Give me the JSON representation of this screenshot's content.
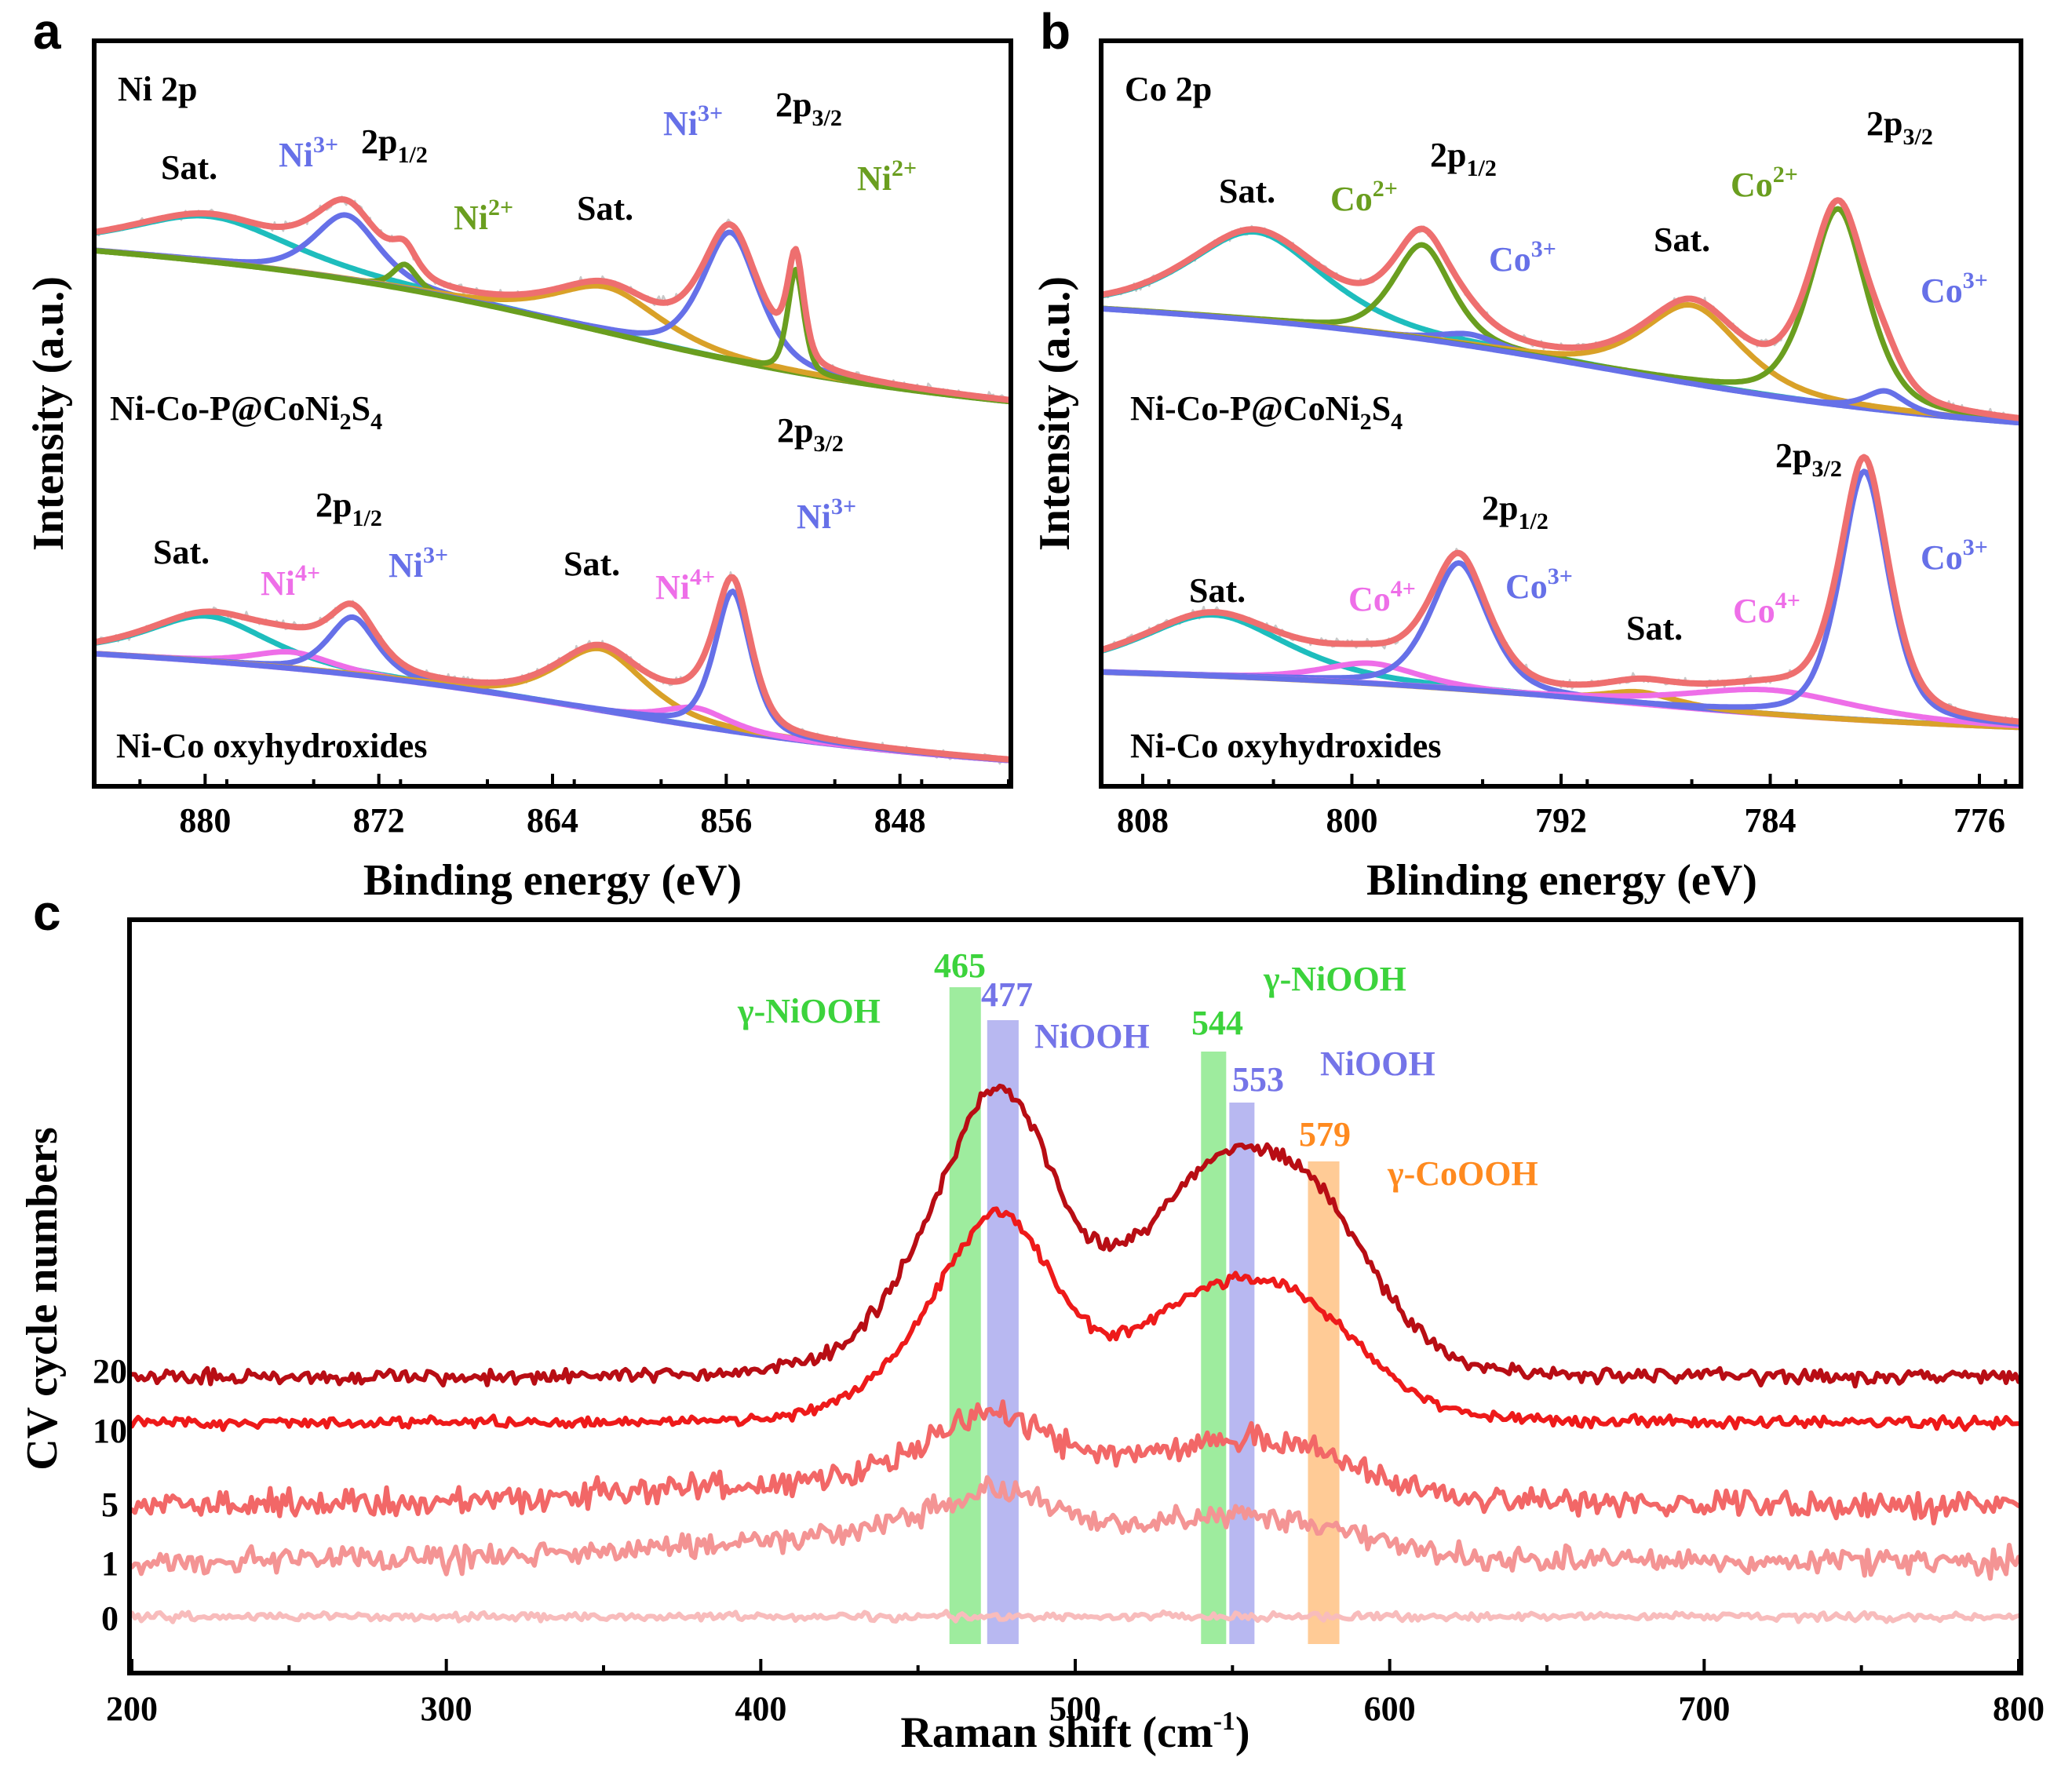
{
  "colors": {
    "raw": "#c8c8c8",
    "envelope": "#ee6f6f",
    "ni3": "#6670e8",
    "ni2": "#6a9e1f",
    "sat": "#d9a128",
    "cyan": "#1ebdbd",
    "pink": "#ee6ee8",
    "green_band": "#4fdc4f",
    "blue_band": "#7e7ee6",
    "orange_band": "#ffa040"
  },
  "chart_data": [
    {
      "panel": "a",
      "type": "line",
      "panel_letter": "a",
      "title": "Ni 2p",
      "xlabel": "Binding energy (eV)",
      "ylabel": "Intensity (a.u.)",
      "xlim": [
        885,
        843
      ],
      "x_ticks": [
        880,
        872,
        864,
        856,
        848
      ],
      "sample_labels": {
        "top": "Ni-Co-P@CoNi",
        "top_sub1": "2",
        "top_mid": "S",
        "top_sub2": "4",
        "bottom": "Ni-Co oxyhydroxides"
      },
      "top_peaks": [
        {
          "x": 879.8,
          "h": 0.55,
          "w": 4.0,
          "label": "Sat."
        },
        {
          "x": 873.5,
          "h": 0.78,
          "w": 1.6,
          "label": "Ni3+"
        },
        {
          "x": 870.8,
          "h": 0.3,
          "w": 0.6,
          "label": "Ni2+"
        },
        {
          "x": 861.5,
          "h": 0.55,
          "w": 2.6,
          "label": "Sat."
        },
        {
          "x": 855.8,
          "h": 1.55,
          "w": 1.4,
          "label": "Ni3+"
        },
        {
          "x": 852.8,
          "h": 1.25,
          "w": 0.4,
          "label": "Ni2+"
        }
      ],
      "bottom_peaks": [
        {
          "x": 879.9,
          "h": 0.55,
          "w": 3.0,
          "label": "Sat."
        },
        {
          "x": 876.0,
          "h": 0.2,
          "w": 2.0,
          "label": "Ni4+"
        },
        {
          "x": 873.2,
          "h": 0.7,
          "w": 1.2,
          "label": "Ni3+"
        },
        {
          "x": 861.8,
          "h": 0.75,
          "w": 2.2,
          "label": "Sat."
        },
        {
          "x": 857.4,
          "h": 0.22,
          "w": 1.6,
          "label": "Ni4+"
        },
        {
          "x": 855.7,
          "h": 1.7,
          "w": 0.9,
          "label": "Ni3+"
        }
      ],
      "annotations": [
        {
          "text": "Sat.",
          "color": "#000"
        },
        {
          "text": "Ni",
          "sup": "3+",
          "color": "ni3"
        },
        {
          "text": "2p",
          "sub": "1/2",
          "color": "#000"
        },
        {
          "text": "Ni",
          "sup": "2+",
          "color": "ni2"
        },
        {
          "text": "Sat.",
          "color": "#000"
        },
        {
          "text": "Ni",
          "sup": "3+",
          "color": "ni3"
        },
        {
          "text": "2p",
          "sub": "3/2",
          "color": "#000"
        },
        {
          "text": "Ni",
          "sup": "2+",
          "color": "ni2"
        },
        {
          "text": "2p",
          "sub": "1/2",
          "color": "#000"
        },
        {
          "text": "Sat.",
          "color": "#000"
        },
        {
          "text": "Ni",
          "sup": "4+",
          "color": "pink"
        },
        {
          "text": "Ni",
          "sup": "3+",
          "color": "ni3"
        },
        {
          "text": "Sat.",
          "color": "#000"
        },
        {
          "text": "Ni",
          "sup": "4+",
          "color": "pink"
        },
        {
          "text": "2p",
          "sub": "3/2",
          "color": "#000"
        },
        {
          "text": "Ni",
          "sup": "3+",
          "color": "ni3"
        }
      ]
    },
    {
      "panel": "b",
      "type": "line",
      "panel_letter": "b",
      "title": "Co 2p",
      "xlabel": "Blinding energy (eV)",
      "ylabel": "Intensity (a.u.)",
      "xlim": [
        809.5,
        774.5
      ],
      "x_ticks": [
        808,
        800,
        792,
        784,
        776
      ],
      "sample_labels": {
        "top": "Ni-Co-P@CoNi",
        "top_sub1": "2",
        "top_mid": "S",
        "top_sub2": "4",
        "bottom": "Ni-Co oxyhydroxides"
      },
      "top_peaks": [
        {
          "x": 803.7,
          "h": 0.45,
          "w": 2.8,
          "label": "Sat."
        },
        {
          "x": 797.3,
          "h": 0.48,
          "w": 1.2,
          "label": "Co2+"
        },
        {
          "x": 795.5,
          "h": 0.06,
          "w": 1.2,
          "label": "Co3+"
        },
        {
          "x": 787.0,
          "h": 0.4,
          "w": 2.0,
          "label": "Sat."
        },
        {
          "x": 781.4,
          "h": 1.0,
          "w": 1.2,
          "label": "Co2+"
        },
        {
          "x": 779.6,
          "h": 0.1,
          "w": 0.8,
          "label": "Co3+"
        }
      ],
      "bottom_peaks": [
        {
          "x": 805.3,
          "h": 0.3,
          "w": 3.0,
          "label": "Sat."
        },
        {
          "x": 799.3,
          "h": 0.1,
          "w": 2.0,
          "label": "Co4+"
        },
        {
          "x": 795.9,
          "h": 0.62,
          "w": 1.2,
          "label": "Co3+"
        },
        {
          "x": 789.0,
          "h": 0.06,
          "w": 1.5,
          "label": "Sat."
        },
        {
          "x": 784.0,
          "h": 0.12,
          "w": 3.5,
          "label": "Co4+"
        },
        {
          "x": 780.4,
          "h": 1.22,
          "w": 1.0,
          "label": "Co3+"
        }
      ],
      "annotations": [
        {
          "text": "Sat.",
          "color": "#000"
        },
        {
          "text": "Co",
          "sup": "2+",
          "color": "ni2"
        },
        {
          "text": "2p",
          "sub": "1/2",
          "color": "#000"
        },
        {
          "text": "Co",
          "sup": "3+",
          "color": "ni3"
        },
        {
          "text": "Sat.",
          "color": "#000"
        },
        {
          "text": "Co",
          "sup": "2+",
          "color": "ni2"
        },
        {
          "text": "2p",
          "sub": "3/2",
          "color": "#000"
        },
        {
          "text": "Co",
          "sup": "3+",
          "color": "ni3"
        },
        {
          "text": "2p",
          "sub": "1/2",
          "color": "#000"
        },
        {
          "text": "2p",
          "sub": "3/2",
          "color": "#000"
        },
        {
          "text": "Sat.",
          "color": "#000"
        },
        {
          "text": "Co",
          "sup": "4+",
          "color": "pink"
        },
        {
          "text": "Co",
          "sup": "3+",
          "color": "ni3"
        },
        {
          "text": "Sat.",
          "color": "#000"
        },
        {
          "text": "Co",
          "sup": "4+",
          "color": "pink"
        },
        {
          "text": "Co",
          "sup": "3+",
          "color": "ni3"
        }
      ]
    },
    {
      "panel": "c",
      "type": "line",
      "panel_letter": "c",
      "xlabel": "Raman shift (cm",
      "xlabel_sup": "-1",
      "xlabel_end": ")",
      "ylabel": "CV cycle numbers",
      "xlim": [
        200,
        800
      ],
      "x_ticks": [
        200,
        300,
        400,
        500,
        600,
        700,
        800
      ],
      "series": [
        {
          "name": "20",
          "color": "#b80d14"
        },
        {
          "name": "10",
          "color": "#ee1a1a"
        },
        {
          "name": "5",
          "color": "#f26767"
        },
        {
          "name": "1",
          "color": "#f49494"
        },
        {
          "name": "0",
          "color": "#f8bcbc"
        }
      ],
      "bands": [
        {
          "x": 465,
          "label": "465",
          "phase": "γ-NiOOH",
          "color": "green_band"
        },
        {
          "x": 477,
          "label": "477",
          "phase": "NiOOH",
          "color": "blue_band"
        },
        {
          "x": 544,
          "label": "544",
          "phase": "γ-NiOOH",
          "color": "green_band"
        },
        {
          "x": 553,
          "label": "553",
          "phase": "NiOOH",
          "color": "blue_band"
        },
        {
          "x": 579,
          "label": "579",
          "phase": "γ-CoOOH",
          "color": "orange_band"
        }
      ]
    }
  ]
}
